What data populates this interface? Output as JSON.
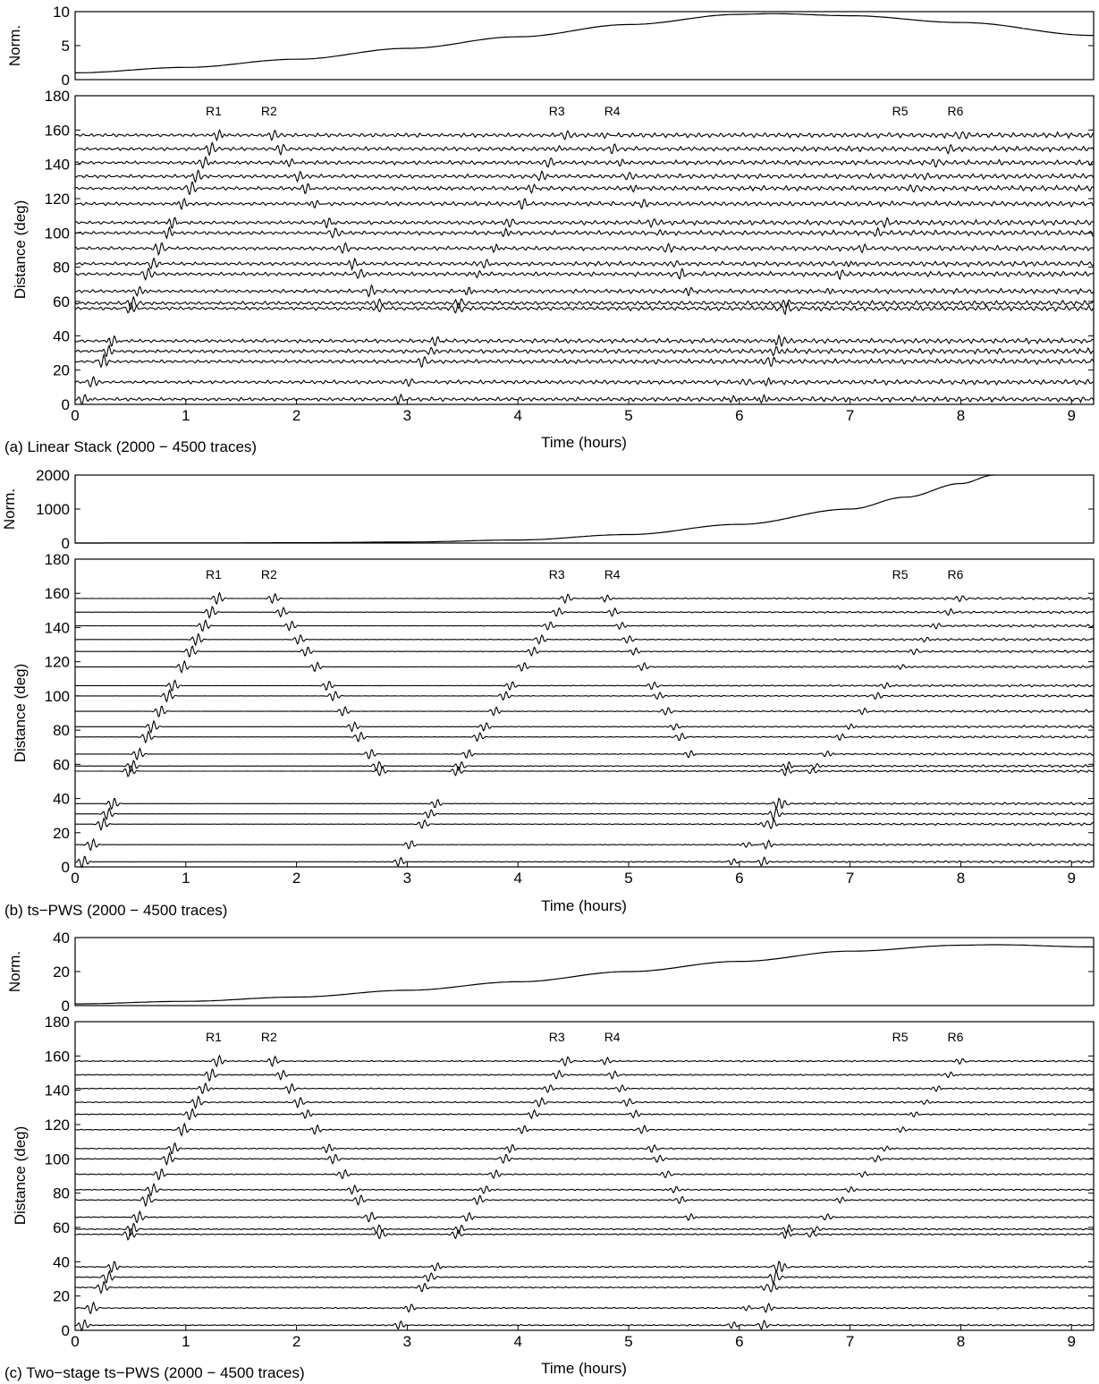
{
  "chart_data": [
    {
      "panel": "a",
      "caption": "(a) Linear Stack (2000 − 4500 traces)",
      "type": "line",
      "norm_plot": {
        "ylabel": "Norm.",
        "ylim": [
          0,
          10
        ],
        "yticks": [
          "0",
          "5",
          "10"
        ],
        "curve": {
          "x": [
            0,
            1,
            2,
            3,
            4,
            5,
            6,
            6.3,
            7,
            8,
            9.2
          ],
          "y": [
            1.0,
            1.8,
            3.0,
            4.6,
            6.3,
            8.1,
            9.6,
            9.7,
            9.4,
            8.4,
            6.5
          ]
        }
      },
      "section": {
        "type": "seismogram-section",
        "xlabel": "Time (hours)",
        "ylabel": "Distance (deg)",
        "xlim": [
          0,
          9.2
        ],
        "ylim": [
          0,
          180
        ],
        "xticks": [
          "0",
          "1",
          "2",
          "3",
          "4",
          "5",
          "6",
          "7",
          "8",
          "9"
        ],
        "yticks": [
          "0",
          "20",
          "40",
          "60",
          "80",
          "100",
          "120",
          "140",
          "160",
          "180"
        ],
        "trace_distances": [
          3,
          13,
          25,
          31,
          37,
          56,
          59,
          66,
          76,
          82,
          91,
          100,
          106,
          117,
          126,
          133,
          141,
          149,
          157
        ],
        "noise_level": 2.3,
        "labels": [
          {
            "text": "R1",
            "x": 1.3
          },
          {
            "text": "R2",
            "x": 1.8
          },
          {
            "text": "R3",
            "x": 4.4
          },
          {
            "text": "R4",
            "x": 4.9
          },
          {
            "text": "R5",
            "x": 7.5
          },
          {
            "text": "R6",
            "x": 8.0
          }
        ]
      }
    },
    {
      "panel": "b",
      "caption": "(b) ts−PWS (2000 − 4500 traces)",
      "type": "line",
      "norm_plot": {
        "ylabel": "Norm.",
        "ylim": [
          0,
          2000
        ],
        "yticks": [
          "0",
          "1000",
          "2000"
        ],
        "curve": {
          "x": [
            0,
            1,
            2,
            3,
            4,
            5,
            6,
            7,
            7.5,
            8,
            8.3
          ],
          "y": [
            1,
            3,
            10,
            30,
            90,
            250,
            550,
            1000,
            1350,
            1750,
            2000
          ]
        }
      },
      "section": {
        "type": "seismogram-section",
        "xlabel": "Time (hours)",
        "ylabel": "Distance (deg)",
        "xlim": [
          0,
          9.2
        ],
        "ylim": [
          0,
          180
        ],
        "xticks": [
          "0",
          "1",
          "2",
          "3",
          "4",
          "5",
          "6",
          "7",
          "8",
          "9"
        ],
        "yticks": [
          "0",
          "20",
          "40",
          "60",
          "80",
          "100",
          "120",
          "140",
          "160",
          "180"
        ],
        "trace_distances": [
          3,
          13,
          25,
          31,
          37,
          56,
          59,
          66,
          76,
          82,
          91,
          100,
          106,
          117,
          126,
          133,
          141,
          149,
          157
        ],
        "noise_level": 0.25,
        "labels": [
          {
            "text": "R1",
            "x": 1.3
          },
          {
            "text": "R2",
            "x": 1.8
          },
          {
            "text": "R3",
            "x": 4.4
          },
          {
            "text": "R4",
            "x": 4.9
          },
          {
            "text": "R5",
            "x": 7.5
          },
          {
            "text": "R6",
            "x": 8.0
          }
        ]
      }
    },
    {
      "panel": "c",
      "caption": "(c) Two−stage ts−PWS (2000 − 4500 traces)",
      "type": "line",
      "norm_plot": {
        "ylabel": "Norm.",
        "ylim": [
          0,
          40
        ],
        "yticks": [
          "0",
          "20",
          "40"
        ],
        "curve": {
          "x": [
            0,
            1,
            2,
            3,
            4,
            5,
            6,
            7,
            8,
            8.3,
            9.2
          ],
          "y": [
            1,
            2.5,
            5,
            9,
            14,
            20,
            26,
            32,
            35.5,
            35.8,
            34.5
          ]
        }
      },
      "section": {
        "type": "seismogram-section",
        "xlabel": "Time (hours)",
        "ylabel": "Distance (deg)",
        "xlim": [
          0,
          9.2
        ],
        "ylim": [
          0,
          180
        ],
        "xticks": [
          "0",
          "1",
          "2",
          "3",
          "4",
          "5",
          "6",
          "7",
          "8",
          "9"
        ],
        "yticks": [
          "0",
          "20",
          "40",
          "60",
          "80",
          "100",
          "120",
          "140",
          "160",
          "180"
        ],
        "trace_distances": [
          3,
          13,
          25,
          31,
          37,
          56,
          59,
          66,
          76,
          82,
          91,
          100,
          106,
          117,
          126,
          133,
          141,
          149,
          157
        ],
        "noise_level": 0.7,
        "labels": [
          {
            "text": "R1",
            "x": 1.3
          },
          {
            "text": "R2",
            "x": 1.8
          },
          {
            "text": "R3",
            "x": 4.4
          },
          {
            "text": "R4",
            "x": 4.9
          },
          {
            "text": "R5",
            "x": 7.5
          },
          {
            "text": "R6",
            "x": 8.0
          }
        ]
      }
    }
  ]
}
